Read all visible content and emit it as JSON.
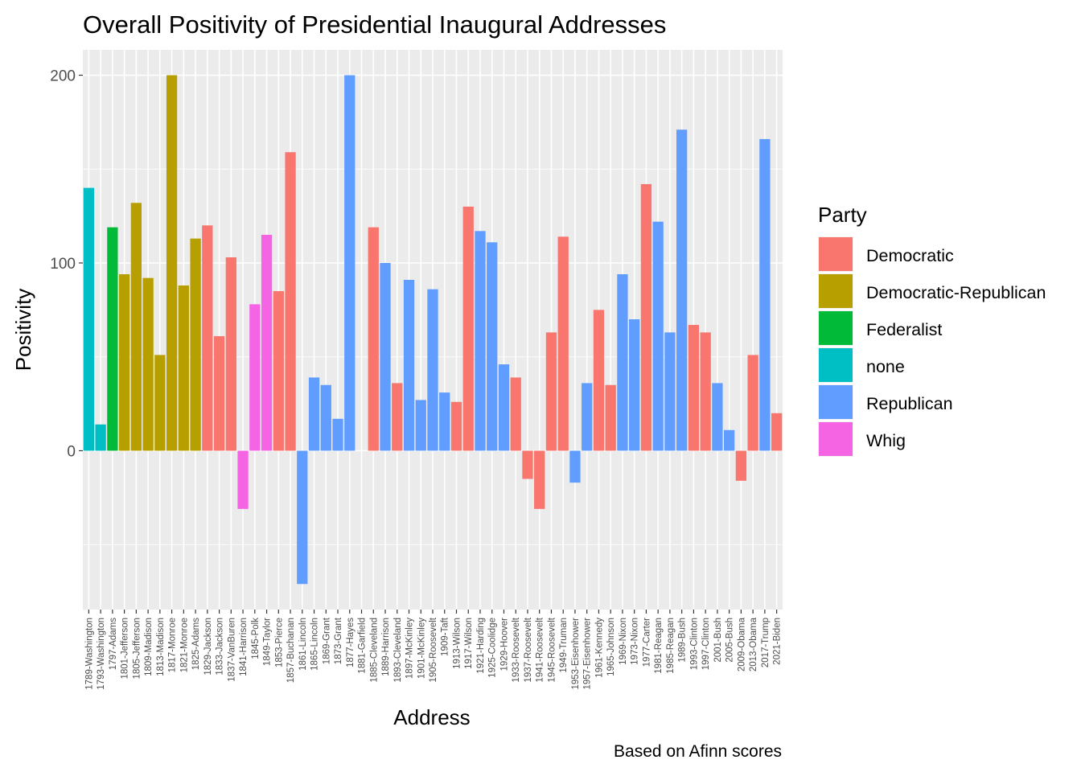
{
  "chart_data": {
    "type": "bar",
    "title": "Overall Positivity of Presidential Inaugural Addresses",
    "xlabel": "Address",
    "ylabel": "Positivity",
    "caption": "Based on Afinn scores",
    "ylim": [
      -84.6,
      213.5
    ],
    "yticks": [
      0,
      100,
      200
    ],
    "grid": true,
    "legend": {
      "title": "Party",
      "placement": "right",
      "entries": [
        {
          "name": "Democratic",
          "color": "#F8766D"
        },
        {
          "name": "Democratic-Republican",
          "color": "#B79F00"
        },
        {
          "name": "Federalist",
          "color": "#00BA38"
        },
        {
          "name": "none",
          "color": "#00BFC4"
        },
        {
          "name": "Republican",
          "color": "#619CFF"
        },
        {
          "name": "Whig",
          "color": "#F564E3"
        }
      ]
    },
    "categories": [
      "1789-Washington",
      "1793-Washington",
      "1797-Adams",
      "1801-Jefferson",
      "1805-Jefferson",
      "1809-Madison",
      "1813-Madison",
      "1817-Monroe",
      "1821-Monroe",
      "1825-Adams",
      "1829-Jackson",
      "1833-Jackson",
      "1837-VanBuren",
      "1841-Harrison",
      "1845-Polk",
      "1849-Taylor",
      "1853-Pierce",
      "1857-Buchanan",
      "1861-Lincoln",
      "1865-Lincoln",
      "1869-Grant",
      "1873-Grant",
      "1877-Hayes",
      "1881-Garfield",
      "1885-Cleveland",
      "1889-Harrison",
      "1893-Cleveland",
      "1897-McKinley",
      "1901-McKinley",
      "1905-Roosevelt",
      "1909-Taft",
      "1913-Wilson",
      "1917-Wilson",
      "1921-Harding",
      "1925-Coolidge",
      "1929-Hoover",
      "1933-Roosevelt",
      "1937-Roosevelt",
      "1941-Roosevelt",
      "1945-Roosevelt",
      "1949-Truman",
      "1953-Eisenhower",
      "1957-Eisenhower",
      "1961-Kennedy",
      "1965-Johnson",
      "1969-Nixon",
      "1973-Nixon",
      "1977-Carter",
      "1981-Reagan",
      "1985-Reagan",
      "1989-Bush",
      "1993-Clinton",
      "1997-Clinton",
      "2001-Bush",
      "2005-Bush",
      "2009-Obama",
      "2013-Obama",
      "2017-Trump",
      "2021-Biden"
    ],
    "values": [
      140,
      14,
      119,
      94,
      132,
      92,
      51,
      200,
      88,
      113,
      120,
      61,
      103,
      -31,
      78,
      115,
      85,
      159,
      -71,
      39,
      35,
      17,
      200,
      0,
      119,
      100,
      36,
      91,
      27,
      86,
      31,
      26,
      130,
      117,
      111,
      46,
      39,
      -15,
      -31,
      63,
      114,
      -17,
      36,
      75,
      35,
      94,
      70,
      142,
      122,
      63,
      171,
      67,
      63,
      36,
      11,
      -16,
      51,
      166,
      20
    ],
    "party": [
      "none",
      "none",
      "Federalist",
      "Democratic-Republican",
      "Democratic-Republican",
      "Democratic-Republican",
      "Democratic-Republican",
      "Democratic-Republican",
      "Democratic-Republican",
      "Democratic-Republican",
      "Democratic",
      "Democratic",
      "Democratic",
      "Whig",
      "Whig",
      "Whig",
      "Democratic",
      "Democratic",
      "Republican",
      "Republican",
      "Republican",
      "Republican",
      "Republican",
      "Republican",
      "Democratic",
      "Republican",
      "Democratic",
      "Republican",
      "Republican",
      "Republican",
      "Republican",
      "Democratic",
      "Democratic",
      "Republican",
      "Republican",
      "Republican",
      "Democratic",
      "Democratic",
      "Democratic",
      "Democratic",
      "Democratic",
      "Republican",
      "Republican",
      "Democratic",
      "Democratic",
      "Republican",
      "Republican",
      "Democratic",
      "Republican",
      "Republican",
      "Republican",
      "Democratic",
      "Democratic",
      "Republican",
      "Republican",
      "Democratic",
      "Democratic",
      "Republican",
      "Democratic"
    ]
  }
}
